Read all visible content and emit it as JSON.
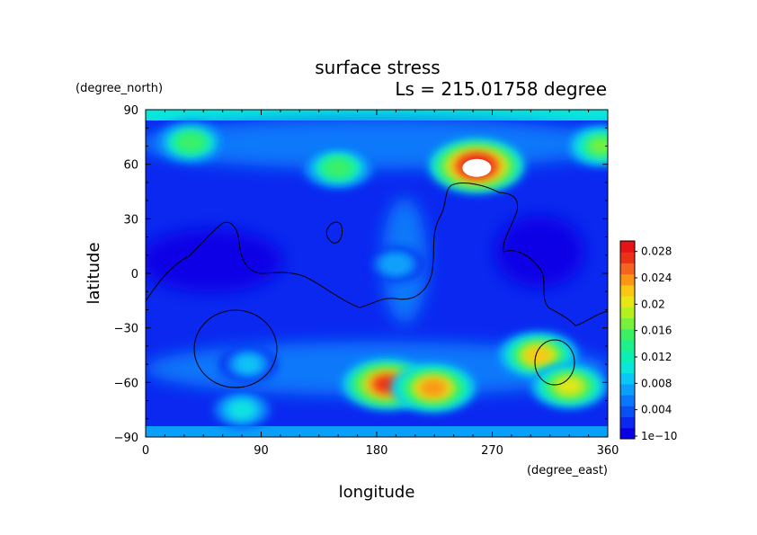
{
  "chart_data": {
    "type": "heatmap",
    "title": "surface stress",
    "subtitle": "Ls = 215.01758 degree",
    "xlabel": "longitude",
    "ylabel": "latitude",
    "x_units": "(degree_east)",
    "y_units": "(degree_north)",
    "xlim": [
      0,
      360
    ],
    "ylim": [
      -90,
      90
    ],
    "x_ticks": [
      "0",
      "90",
      "180",
      "270",
      "360"
    ],
    "y_ticks": [
      "90",
      "60",
      "30",
      "0",
      "−30",
      "−60",
      "−90"
    ],
    "colorbar": {
      "min": 0,
      "max": 0.03,
      "tick_labels": [
        "1e−10",
        "0.004",
        "0.008",
        "0.012",
        "0.016",
        "0.02",
        "0.024",
        "0.028"
      ],
      "colors": [
        "#0a00e6",
        "#0a28f0",
        "#0a50f5",
        "#0a78fa",
        "#0aa0fa",
        "#0ac8f5",
        "#0ae6dc",
        "#0af0b4",
        "#1ef08c",
        "#3cf064",
        "#78f03c",
        "#b4f01e",
        "#e6e614",
        "#fac814",
        "#fa9614",
        "#f5641e",
        "#eb3219",
        "#e61414"
      ]
    },
    "hotspots": [
      {
        "lon": 258,
        "lat": 59,
        "value": 0.03
      },
      {
        "lon": 188,
        "lat": -61,
        "value": 0.027
      },
      {
        "lon": 224,
        "lat": -63,
        "value": 0.024
      },
      {
        "lon": 306,
        "lat": -45,
        "value": 0.022
      },
      {
        "lon": 330,
        "lat": -62,
        "value": 0.02
      },
      {
        "lon": 355,
        "lat": 70,
        "value": 0.017
      },
      {
        "lon": 35,
        "lat": 72,
        "value": 0.016
      },
      {
        "lon": 150,
        "lat": 58,
        "value": 0.016
      },
      {
        "lon": 80,
        "lat": -50,
        "value": 0.009
      },
      {
        "lon": 75,
        "lat": -75,
        "value": 0.01
      },
      {
        "lon": 195,
        "lat": 5,
        "value": 0.008
      }
    ]
  }
}
